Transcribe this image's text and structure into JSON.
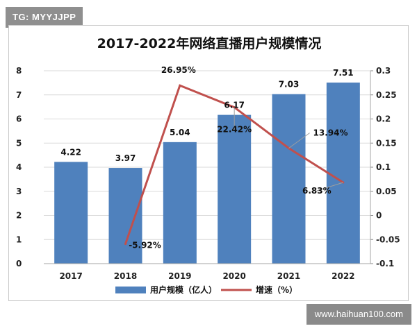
{
  "watermark_tag": "TG: MYYJJPP",
  "site_tag": "www.haihuan100.com",
  "chart_data": {
    "type": "bar",
    "title": "2017-2022年网络直播用户规模情况",
    "categories": [
      "2017",
      "2018",
      "2019",
      "2020",
      "2021",
      "2022"
    ],
    "series": [
      {
        "name": "用户规模（亿人）",
        "type": "bar",
        "axis": "left",
        "color": "#4f81bd",
        "values": [
          4.22,
          3.97,
          5.04,
          6.17,
          7.03,
          7.51
        ],
        "labels": [
          "4.22",
          "3.97",
          "5.04",
          "6.17",
          "7.03",
          "7.51"
        ]
      },
      {
        "name": "增速（%）",
        "type": "line",
        "axis": "right",
        "color": "#c0504d",
        "values": [
          null,
          -0.0592,
          0.2695,
          0.2242,
          0.1394,
          0.0683
        ],
        "labels": [
          null,
          "-5.92%",
          "26.95%",
          "22.42%",
          "13.94%",
          "6.83%"
        ]
      }
    ],
    "y_left": {
      "min": 0,
      "max": 8,
      "ticks": [
        "0",
        "1",
        "2",
        "3",
        "4",
        "5",
        "6",
        "7",
        "8"
      ]
    },
    "y_right": {
      "min": -0.1,
      "max": 0.3,
      "ticks": [
        "-0.1",
        "-0.05",
        "0",
        "0.05",
        "0.1",
        "0.15",
        "0.2",
        "0.25",
        "0.3"
      ]
    },
    "grid": true,
    "legend_position": "bottom"
  }
}
